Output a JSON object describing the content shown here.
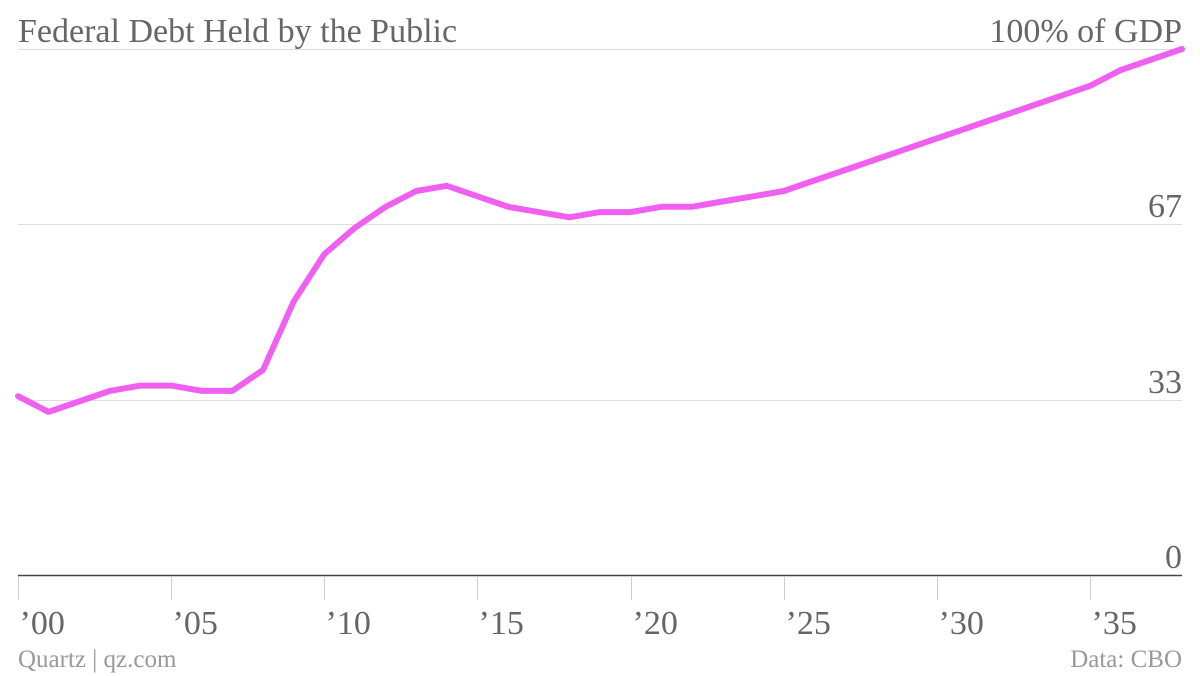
{
  "chart_data": {
    "type": "line",
    "title": "Federal Debt Held by the Public",
    "xlim": [
      2000,
      2038
    ],
    "ylim": [
      0,
      100
    ],
    "x": [
      2000,
      2001,
      2002,
      2003,
      2004,
      2005,
      2006,
      2007,
      2008,
      2009,
      2010,
      2011,
      2012,
      2013,
      2014,
      2015,
      2016,
      2017,
      2018,
      2019,
      2020,
      2021,
      2022,
      2023,
      2024,
      2025,
      2026,
      2027,
      2028,
      2029,
      2030,
      2031,
      2032,
      2033,
      2034,
      2035,
      2036,
      2037,
      2038
    ],
    "series": [
      {
        "values": [
          34,
          31,
          33,
          35,
          36,
          36,
          35,
          35,
          39,
          52,
          61,
          66,
          70,
          73,
          74,
          72,
          70,
          69,
          68,
          69,
          69,
          70,
          70,
          71,
          72,
          73,
          75,
          77,
          79,
          81,
          83,
          85,
          87,
          89,
          91,
          93,
          96,
          98,
          100
        ],
        "color": "#f060f0"
      }
    ],
    "xticks": [
      {
        "value": 2000,
        "label": "’00"
      },
      {
        "value": 2005,
        "label": "’05"
      },
      {
        "value": 2010,
        "label": "’10"
      },
      {
        "value": 2015,
        "label": "’15"
      },
      {
        "value": 2020,
        "label": "’20"
      },
      {
        "value": 2025,
        "label": "’25"
      },
      {
        "value": 2030,
        "label": "’30"
      },
      {
        "value": 2035,
        "label": "’35"
      }
    ],
    "yticks": [
      {
        "value": 0,
        "label": "0"
      },
      {
        "value": 33.33,
        "label": "33"
      },
      {
        "value": 66.67,
        "label": "67"
      },
      {
        "value": 100,
        "label": "100% of GDP"
      }
    ],
    "grid": true,
    "legend": "none"
  },
  "footer": {
    "credit": "Quartz | qz.com",
    "source": "Data: CBO"
  },
  "colors": {
    "background": "#ffffff",
    "line": "#f060f0",
    "text": "#666666",
    "footer_text": "#999999",
    "grid": "#dddddd",
    "axis": "#444444",
    "tick": "#cccccc"
  }
}
